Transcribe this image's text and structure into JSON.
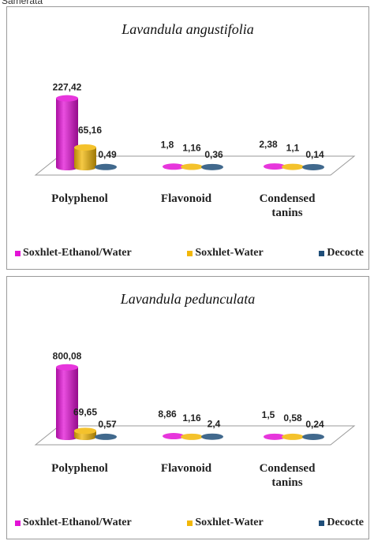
{
  "page_label": "Samerata",
  "chart_data": [
    {
      "type": "bar",
      "title": "Lavandula angustifolia",
      "categories": [
        "Polyphenol",
        "Flavonoid",
        "Condensed tanins"
      ],
      "series": [
        {
          "name": "Soxhlet-Ethanol/Water",
          "values": [
            227.42,
            1.8,
            2.38
          ],
          "labels": [
            "227,42",
            "1,8",
            "2,38"
          ],
          "color": "#e313d6"
        },
        {
          "name": "Soxhlet-Water",
          "values": [
            65.16,
            1.16,
            1.1
          ],
          "labels": [
            "65,16",
            "1,16",
            "1,1"
          ],
          "color": "#f2b707"
        },
        {
          "name": "Decocte",
          "values": [
            0.49,
            0.36,
            0.14
          ],
          "labels": [
            "0,49",
            "0,36",
            "0,14"
          ],
          "color": "#1f4e79"
        }
      ],
      "ylim": [
        0,
        250
      ],
      "legend_position": "bottom",
      "grid": false,
      "style": "3d-cylinder"
    },
    {
      "type": "bar",
      "title": "Lavandula pedunculata",
      "categories": [
        "Polyphenol",
        "Flavonoid",
        "Condensed tanins"
      ],
      "series": [
        {
          "name": "Soxhlet-Ethanol/Water",
          "values": [
            800.08,
            8.86,
            1.5
          ],
          "labels": [
            "800,08",
            "8,86",
            "1,5"
          ],
          "color": "#e313d6"
        },
        {
          "name": "Soxhlet-Water",
          "values": [
            69.65,
            1.16,
            0.58
          ],
          "labels": [
            "69,65",
            "1,16",
            "0,58"
          ],
          "color": "#f2b707"
        },
        {
          "name": "Decocte",
          "values": [
            0.57,
            2.4,
            0.24
          ],
          "labels": [
            "0,57",
            "2,4",
            "0,24"
          ],
          "color": "#1f4e79"
        }
      ],
      "ylim": [
        0,
        870
      ],
      "legend_position": "bottom",
      "grid": false,
      "style": "3d-cylinder"
    }
  ]
}
